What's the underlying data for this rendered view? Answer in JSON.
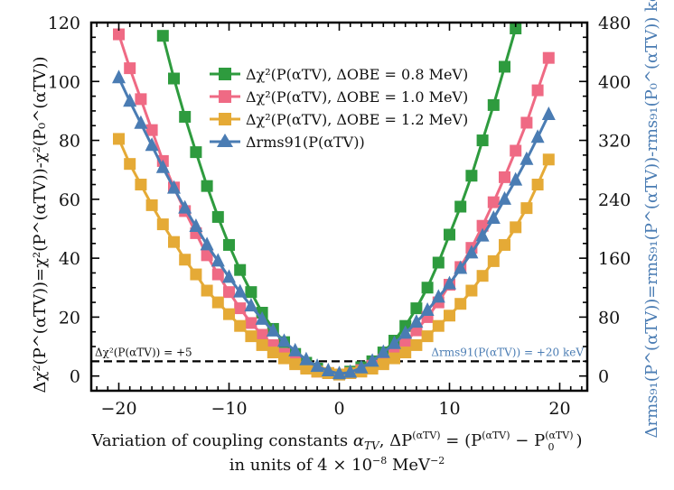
{
  "chart_data": {
    "type": "line",
    "x": [
      -20,
      -19,
      -18,
      -17,
      -16,
      -15,
      -14,
      -13,
      -12,
      -11,
      -10,
      -9,
      -8,
      -7,
      -6,
      -5,
      -4,
      -3,
      -2,
      -1,
      0,
      1,
      2,
      3,
      4,
      5,
      6,
      7,
      8,
      9,
      10,
      11,
      12,
      13,
      14,
      15,
      16,
      17,
      18,
      19
    ],
    "series": [
      {
        "name": "Δχ²(P^(α_TV), ΔO_BE = 0.8 MeV)",
        "color": "#2e9b3e",
        "marker": "square",
        "axis": "left",
        "values": [
          null,
          null,
          null,
          null,
          115.5,
          101,
          88,
          76,
          64.5,
          54,
          44.5,
          36,
          28.5,
          21.5,
          16,
          11.5,
          7.5,
          4.5,
          2.5,
          1,
          0.5,
          1.5,
          3,
          5,
          8,
          12,
          17,
          23,
          30,
          38.5,
          48,
          57.5,
          68,
          80,
          92,
          105,
          118,
          null,
          null,
          null
        ]
      },
      {
        "name": "Δχ²(P^(α_TV), ΔO_BE = 1.0 MeV)",
        "color": "#ef6a84",
        "marker": "square",
        "axis": "left",
        "values": [
          116,
          104.5,
          94,
          83.5,
          73,
          64,
          56,
          48.5,
          41,
          34.5,
          28.5,
          23,
          18,
          14,
          10.5,
          7.5,
          5,
          3,
          1.5,
          1,
          0.5,
          1,
          2,
          3.5,
          5.5,
          8,
          11.5,
          15.5,
          20,
          25,
          31,
          37,
          43.5,
          51,
          59,
          67.5,
          76.5,
          86,
          97,
          108
        ]
      },
      {
        "name": "Δχ²(P^(α_TV), ΔO_BE = 1.2 MeV)",
        "color": "#e5aa36",
        "marker": "square",
        "axis": "left",
        "values": [
          80.5,
          72,
          65,
          58,
          51.5,
          45.5,
          39.5,
          34.5,
          29,
          25,
          21,
          17,
          13.5,
          10.5,
          8,
          6,
          4,
          2.5,
          1.5,
          1,
          0.5,
          1,
          1.5,
          2.5,
          4,
          6,
          8,
          10.5,
          13.5,
          17,
          20.5,
          24.5,
          29,
          34,
          39,
          44.5,
          50.5,
          57,
          65,
          73.5
        ]
      },
      {
        "name": "Δrms₉₁(P^(α_TV))",
        "color": "#4a7cb3",
        "marker": "triangle",
        "axis": "right",
        "values": [
          405,
          373,
          343,
          313,
          283,
          255,
          228,
          203,
          178,
          156,
          134,
          114,
          95,
          77,
          61,
          47,
          34,
          22,
          13,
          7,
          3,
          5,
          11,
          20,
          32,
          44,
          58,
          73,
          89,
          107,
          125,
          146,
          167,
          190,
          214,
          240,
          266,
          294,
          324,
          355
        ]
      }
    ],
    "xlim": [
      -22.5,
      22.5
    ],
    "ylim_left": [
      -5,
      120
    ],
    "ylim_right": [
      -20,
      480
    ],
    "xticks": [
      -20,
      -10,
      0,
      10,
      20
    ],
    "yticks_left": [
      0,
      20,
      40,
      60,
      80,
      100,
      120
    ],
    "yticks_right": [
      0,
      80,
      160,
      240,
      320,
      400,
      480
    ],
    "xlabel_line1": "Variation of coupling constants α_TV, ΔP^(α_TV) = (P^(α_TV) − P₀^(α_TV))",
    "xlabel_line2": "in units of 4 × 10⁻⁸ MeV⁻²",
    "ylabel_left": "Δχ²(P^(α_TV))=χ²(P^(α_TV))-χ²(P₀^(α_TV))",
    "ylabel_right": "Δrms₉₁(P^(α_TV))=rms₉₁(P^(α_TV))-rms₉₁(P₀^(α_TV)) keV",
    "ref_line_left": {
      "value": 5,
      "label": "Δχ²(P^(α_TV)) = +5"
    },
    "ref_line_right_label": "Δrms₉₁(P^(α_TV)) = +20 keV",
    "legend_position": "top-center",
    "grid": false
  },
  "text": {
    "xlabel_a": "Variation of coupling constants ",
    "xlabel_b": "α",
    "xlabel_c": "TV",
    "xlabel_d": ", ΔP",
    "xlabel_e": "(αTV)",
    "xlabel_f": " = (P",
    "xlabel_g": "(αTV)",
    "xlabel_h": " − P",
    "xlabel_i": "(αTV)",
    "xlabel_j": "0",
    "xlabel_k": ")",
    "xlabel2_a": "in units of 4 × 10",
    "xlabel2_b": "−8",
    "xlabel2_c": " MeV",
    "xlabel2_d": "−2",
    "ylabel_left": "Δχ²(P^(αTV))=χ²(P^(αTV))-χ²(P₀^(αTV))",
    "ylabel_right": "Δrms₉₁(P^(αTV))=rms₉₁(P^(αTV))-rms₉₁(P₀^(αTV)) keV",
    "ref_left": "Δχ²(P(αTV)) = +5",
    "ref_right": "Δrms91(P(αTV)) = +20 keV",
    "legend": [
      "Δχ²(P(αTV), ΔOBE = 0.8 MeV)",
      "Δχ²(P(αTV), ΔOBE = 1.0 MeV)",
      "Δχ²(P(αTV), ΔOBE = 1.2 MeV)",
      "Δrms91(P(αTV))"
    ]
  }
}
